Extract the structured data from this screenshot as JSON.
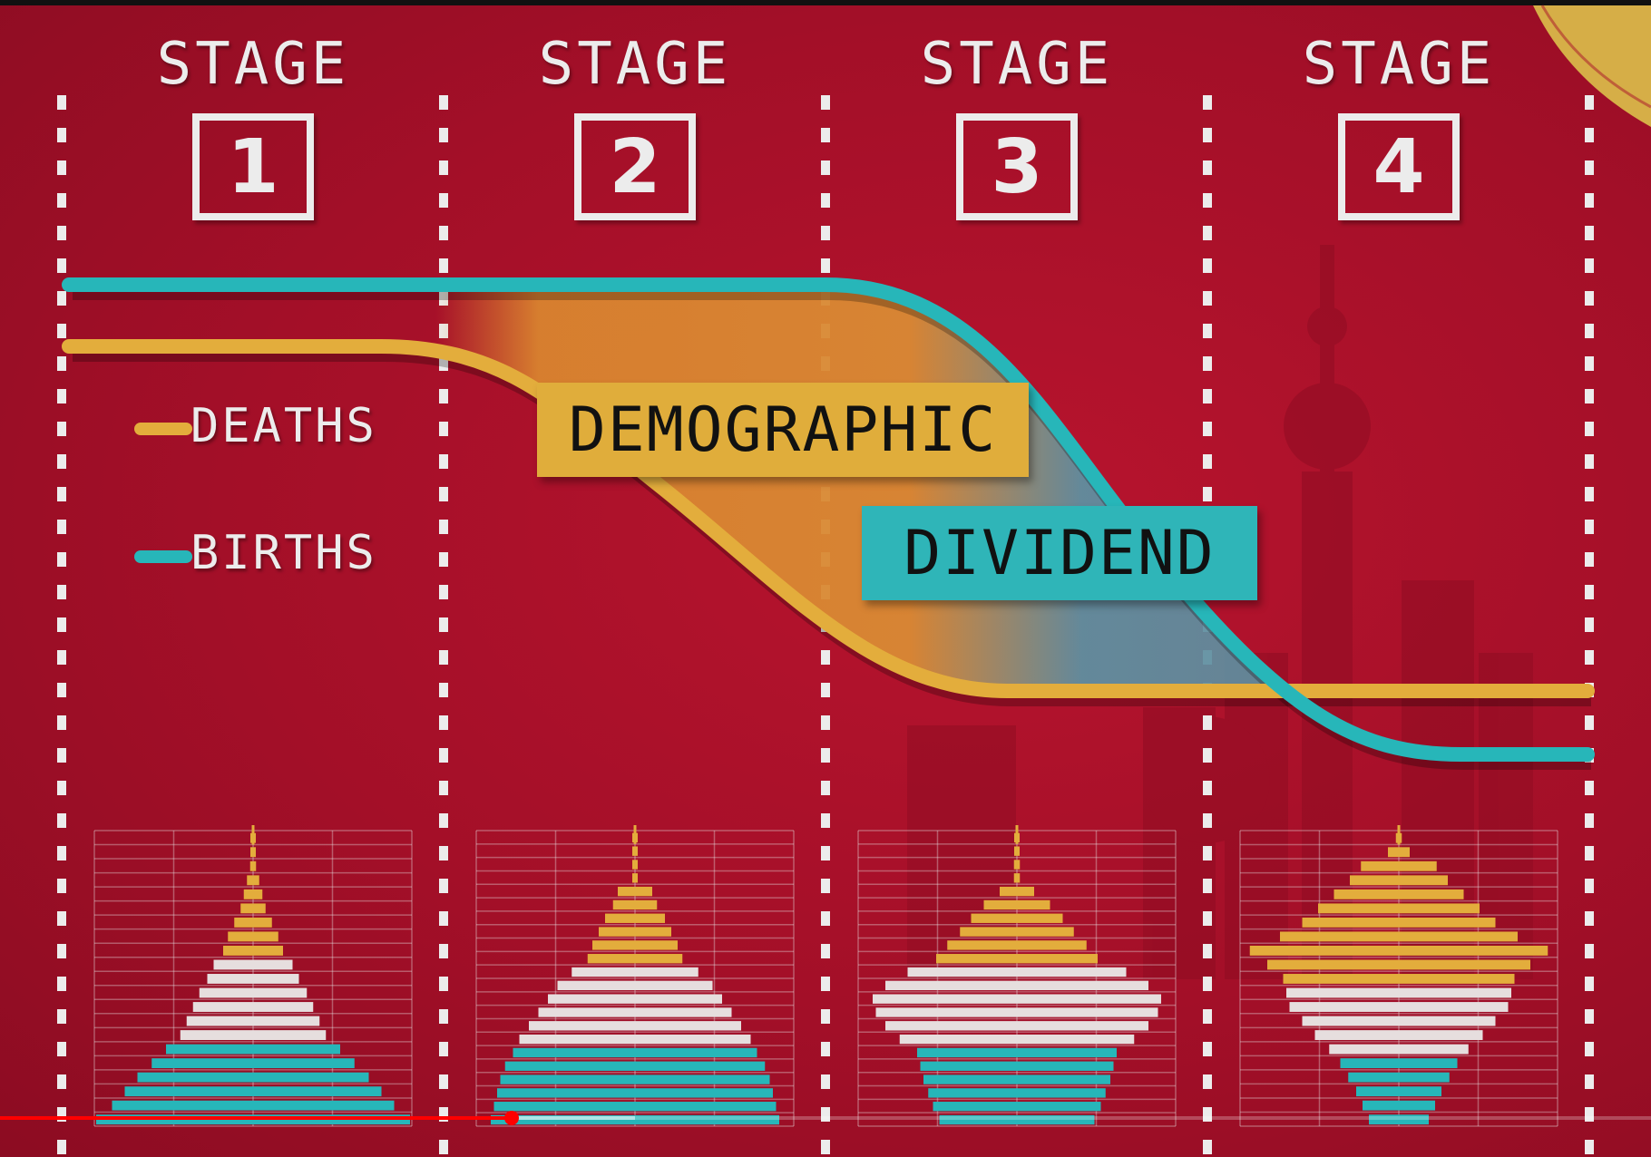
{
  "stages": [
    {
      "title": "STAGE",
      "number": "1"
    },
    {
      "title": "STAGE",
      "number": "2"
    },
    {
      "title": "STAGE",
      "number": "3"
    },
    {
      "title": "STAGE",
      "number": "4"
    }
  ],
  "legend": {
    "deaths": "DEATHS",
    "births": "BIRTHS"
  },
  "banners": {
    "word1": "DEMOGRAPHIC",
    "word2": "DIVIDEND"
  },
  "colors": {
    "background": "#a8102a",
    "deaths": "#e3ad3c",
    "births": "#27b6b9",
    "neutral": "#e6dede",
    "dividend_fill": "#d9842f",
    "dividend_fill_late": "#5f8fa0"
  },
  "pyramids": [
    {
      "stage": 1,
      "rows": [
        {
          "w": 0.01,
          "c": "deaths"
        },
        {
          "w": 0.01,
          "c": "deaths"
        },
        {
          "w": 0.03,
          "c": "deaths"
        },
        {
          "w": 0.05,
          "c": "deaths"
        },
        {
          "w": 0.07,
          "c": "deaths"
        },
        {
          "w": 0.09,
          "c": "deaths"
        },
        {
          "w": 0.13,
          "c": "deaths"
        },
        {
          "w": 0.17,
          "c": "deaths"
        },
        {
          "w": 0.2,
          "c": "deaths"
        },
        {
          "w": 0.26,
          "c": "neutral"
        },
        {
          "w": 0.3,
          "c": "neutral"
        },
        {
          "w": 0.35,
          "c": "neutral"
        },
        {
          "w": 0.39,
          "c": "neutral"
        },
        {
          "w": 0.43,
          "c": "neutral"
        },
        {
          "w": 0.47,
          "c": "neutral"
        },
        {
          "w": 0.56,
          "c": "births"
        },
        {
          "w": 0.65,
          "c": "births"
        },
        {
          "w": 0.74,
          "c": "births"
        },
        {
          "w": 0.82,
          "c": "births"
        },
        {
          "w": 0.9,
          "c": "births"
        },
        {
          "w": 1.0,
          "c": "births"
        }
      ]
    },
    {
      "stage": 2,
      "rows": [
        {
          "w": 0.01,
          "c": "deaths"
        },
        {
          "w": 0.01,
          "c": "deaths"
        },
        {
          "w": 0.02,
          "c": "deaths"
        },
        {
          "w": 0.02,
          "c": "deaths"
        },
        {
          "w": 0.12,
          "c": "deaths"
        },
        {
          "w": 0.15,
          "c": "deaths"
        },
        {
          "w": 0.2,
          "c": "deaths"
        },
        {
          "w": 0.24,
          "c": "deaths"
        },
        {
          "w": 0.28,
          "c": "deaths"
        },
        {
          "w": 0.31,
          "c": "deaths"
        },
        {
          "w": 0.41,
          "c": "neutral"
        },
        {
          "w": 0.5,
          "c": "neutral"
        },
        {
          "w": 0.56,
          "c": "neutral"
        },
        {
          "w": 0.62,
          "c": "neutral"
        },
        {
          "w": 0.68,
          "c": "neutral"
        },
        {
          "w": 0.74,
          "c": "neutral"
        },
        {
          "w": 0.78,
          "c": "births"
        },
        {
          "w": 0.83,
          "c": "births"
        },
        {
          "w": 0.86,
          "c": "births"
        },
        {
          "w": 0.88,
          "c": "births"
        },
        {
          "w": 0.9,
          "c": "births"
        },
        {
          "w": 0.92,
          "c": "births"
        }
      ]
    },
    {
      "stage": 3,
      "rows": [
        {
          "w": 0.01,
          "c": "deaths"
        },
        {
          "w": 0.01,
          "c": "deaths"
        },
        {
          "w": 0.03,
          "c": "deaths"
        },
        {
          "w": 0.03,
          "c": "deaths"
        },
        {
          "w": 0.12,
          "c": "deaths"
        },
        {
          "w": 0.22,
          "c": "deaths"
        },
        {
          "w": 0.3,
          "c": "deaths"
        },
        {
          "w": 0.37,
          "c": "deaths"
        },
        {
          "w": 0.45,
          "c": "deaths"
        },
        {
          "w": 0.52,
          "c": "deaths"
        },
        {
          "w": 0.7,
          "c": "neutral"
        },
        {
          "w": 0.84,
          "c": "neutral"
        },
        {
          "w": 0.92,
          "c": "neutral"
        },
        {
          "w": 0.9,
          "c": "neutral"
        },
        {
          "w": 0.84,
          "c": "neutral"
        },
        {
          "w": 0.75,
          "c": "neutral"
        },
        {
          "w": 0.64,
          "c": "births"
        },
        {
          "w": 0.62,
          "c": "births"
        },
        {
          "w": 0.6,
          "c": "births"
        },
        {
          "w": 0.57,
          "c": "births"
        },
        {
          "w": 0.54,
          "c": "births"
        },
        {
          "w": 0.5,
          "c": "births"
        }
      ]
    },
    {
      "stage": 4,
      "rows": [
        {
          "w": 0.03,
          "c": "deaths"
        },
        {
          "w": 0.08,
          "c": "deaths"
        },
        {
          "w": 0.25,
          "c": "deaths"
        },
        {
          "w": 0.32,
          "c": "deaths"
        },
        {
          "w": 0.42,
          "c": "deaths"
        },
        {
          "w": 0.52,
          "c": "deaths"
        },
        {
          "w": 0.62,
          "c": "deaths"
        },
        {
          "w": 0.76,
          "c": "deaths"
        },
        {
          "w": 0.95,
          "c": "deaths"
        },
        {
          "w": 0.84,
          "c": "deaths"
        },
        {
          "w": 0.74,
          "c": "deaths"
        },
        {
          "w": 0.72,
          "c": "neutral"
        },
        {
          "w": 0.7,
          "c": "neutral"
        },
        {
          "w": 0.62,
          "c": "neutral"
        },
        {
          "w": 0.54,
          "c": "neutral"
        },
        {
          "w": 0.45,
          "c": "neutral"
        },
        {
          "w": 0.38,
          "c": "births"
        },
        {
          "w": 0.33,
          "c": "births"
        },
        {
          "w": 0.28,
          "c": "births"
        },
        {
          "w": 0.24,
          "c": "births"
        },
        {
          "w": 0.2,
          "c": "births"
        }
      ]
    }
  ],
  "video": {
    "progress_fraction": 0.31
  }
}
